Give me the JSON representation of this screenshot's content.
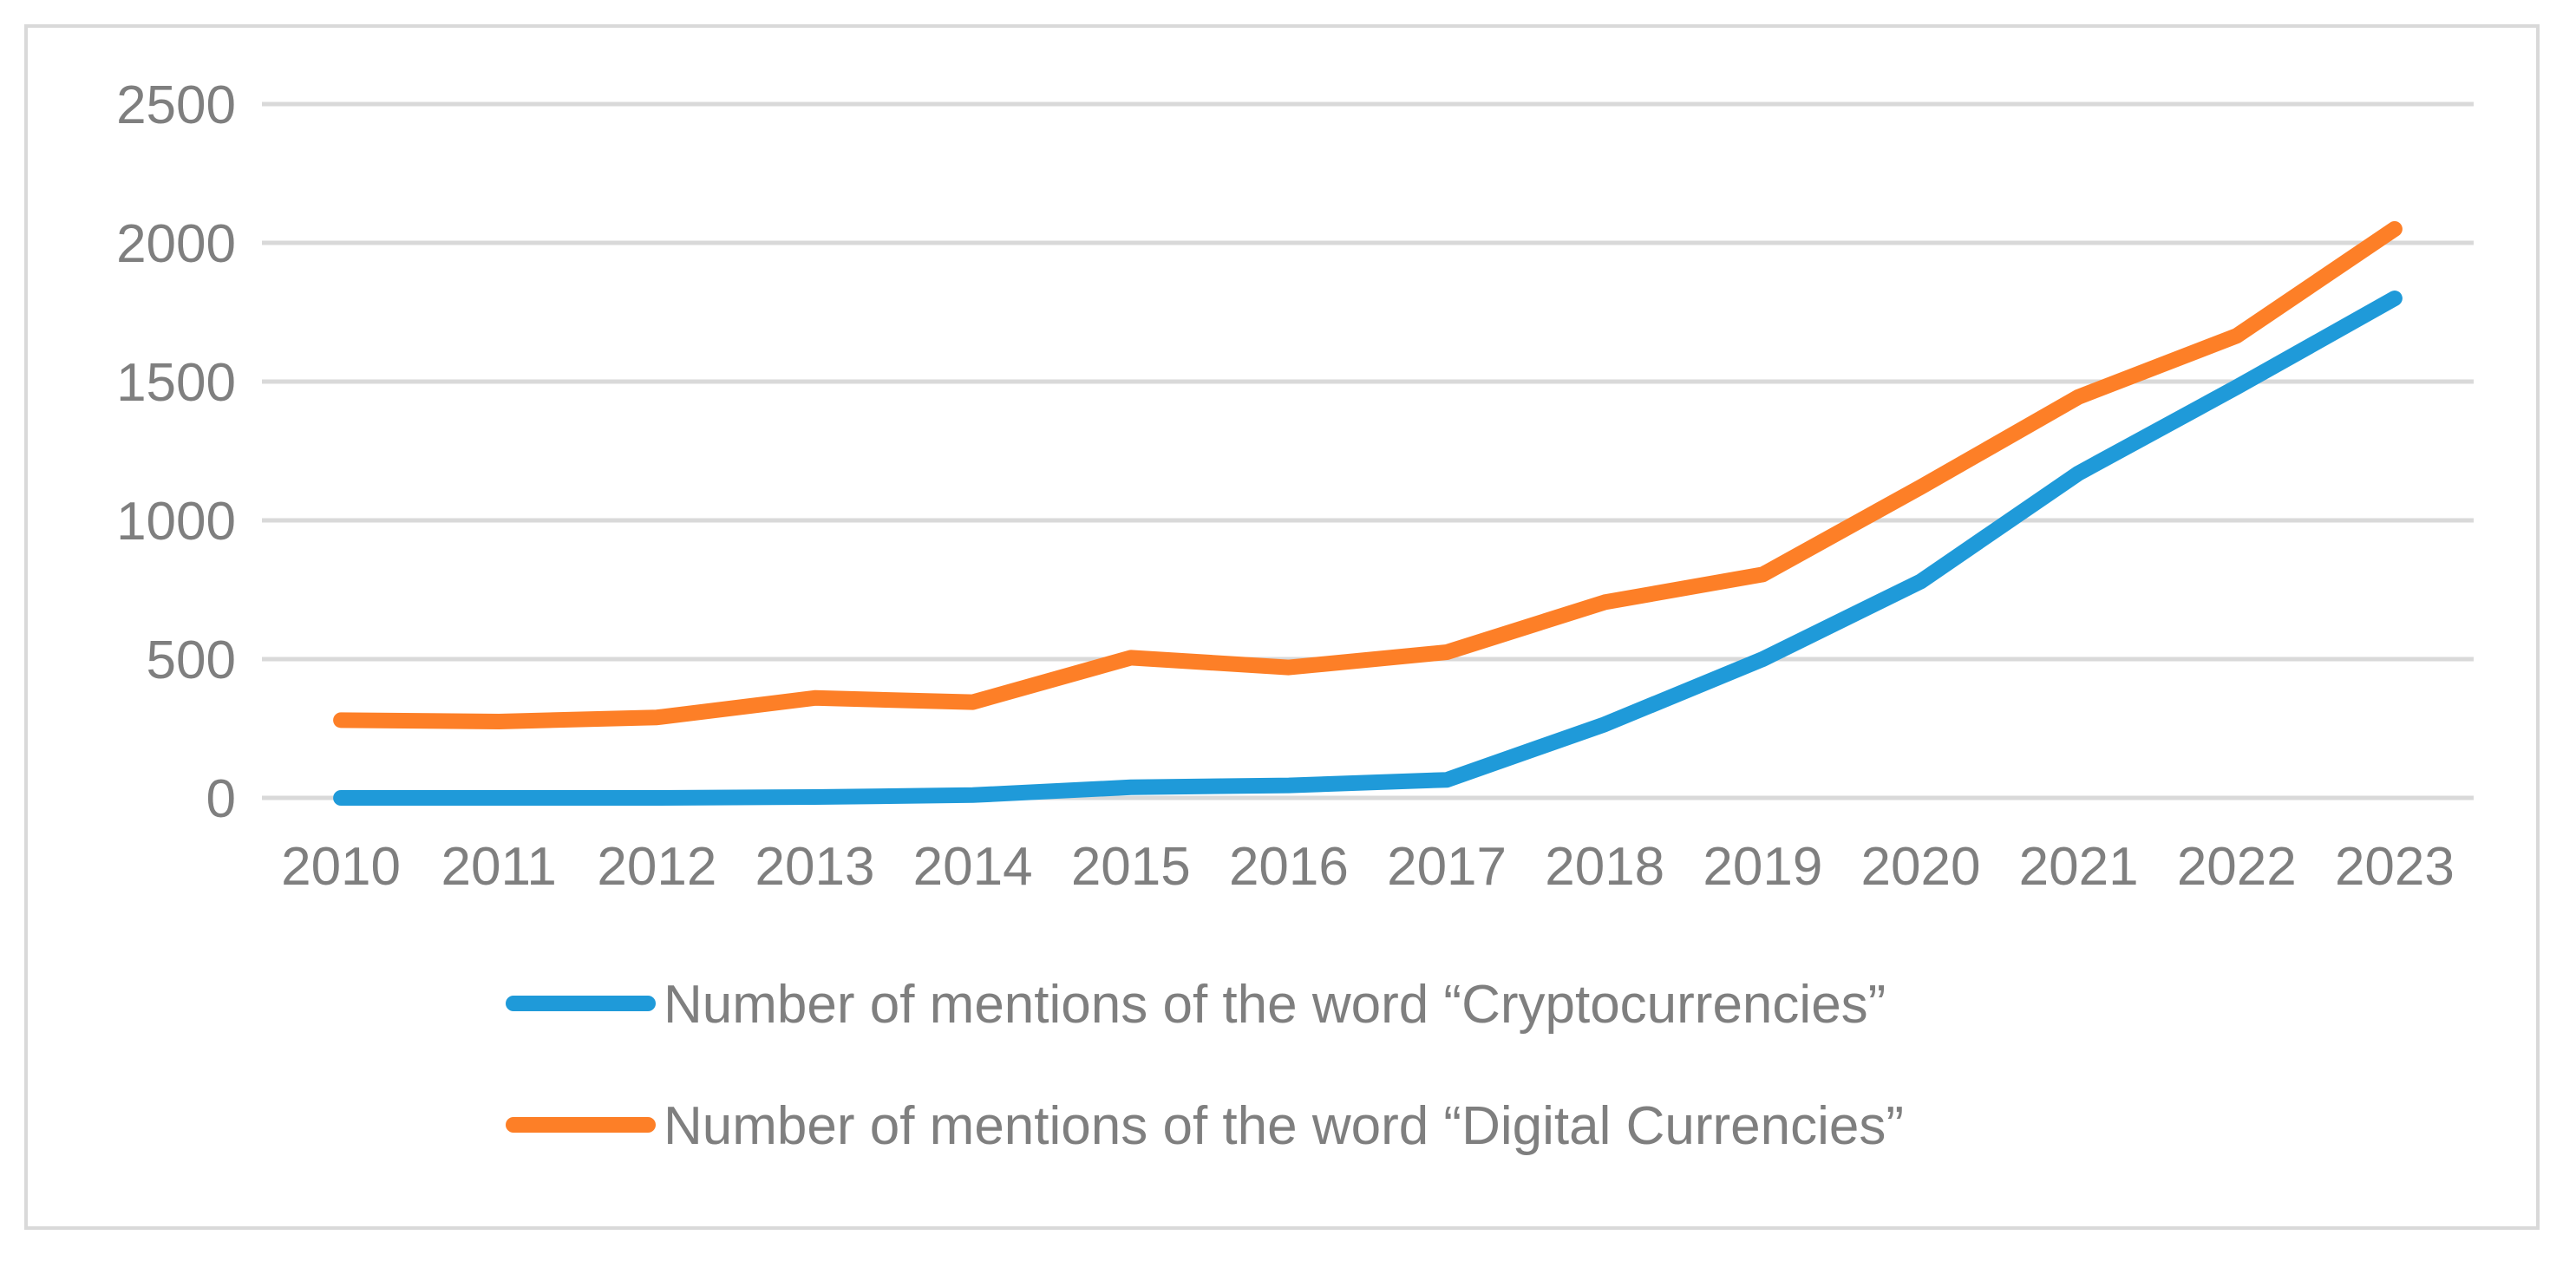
{
  "chart_data": {
    "type": "line",
    "title": "",
    "xlabel": "",
    "ylabel": "",
    "categories": [
      "2010",
      "2011",
      "2012",
      "2013",
      "2014",
      "2015",
      "2016",
      "2017",
      "2018",
      "2019",
      "2020",
      "2021",
      "2022",
      "2023"
    ],
    "ylim": [
      0,
      2500
    ],
    "yticks": [
      0,
      500,
      1000,
      1500,
      2000,
      2500
    ],
    "grid": true,
    "legend_position": "bottom",
    "series": [
      {
        "name": "Number of mentions of the word “Cryptocurrencies”",
        "color": "#1f9ad9",
        "values": [
          0,
          0,
          0,
          3,
          10,
          38,
          45,
          65,
          265,
          500,
          780,
          1170,
          1480,
          1800
        ]
      },
      {
        "name": "Number of mentions of the word “Digital Currencies”",
        "color": "#fd7f27",
        "values": [
          280,
          275,
          290,
          360,
          345,
          505,
          470,
          525,
          705,
          805,
          1120,
          1445,
          1665,
          2050
        ]
      }
    ]
  }
}
